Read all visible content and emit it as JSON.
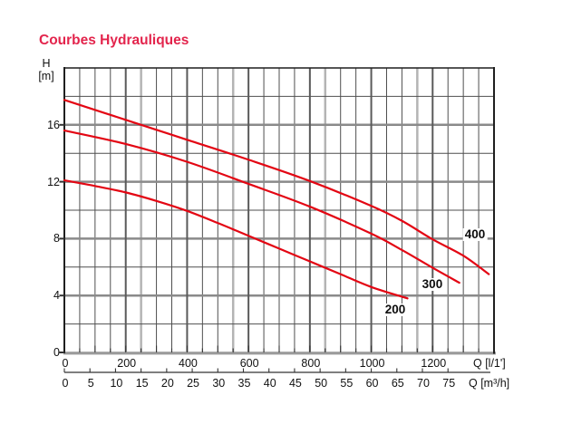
{
  "title": "Courbes Hydrauliques",
  "colors": {
    "title_red": "#e3244c",
    "curve_red": "#e30613",
    "grid_minor": "#4f4f4f",
    "grid_major_h": "#8a8a8a",
    "grid_major_v": "#5a5a5a",
    "grid_moire": "#b4b4b4",
    "axis_dark": "#1f1f1f",
    "bottom_edge": "#9a9a9a",
    "text": "#111111"
  },
  "y_axis": {
    "unit_line1": "H",
    "unit_line2": "[m]",
    "tick_labels": [
      "0",
      "4",
      "8",
      "12",
      "16"
    ],
    "tick_values": [
      0,
      4,
      8,
      12,
      16
    ],
    "max": 20,
    "minor_step": 2
  },
  "x_axis_lmin": {
    "unit_label": "Q [l/1']",
    "tick_labels": [
      "0",
      "200",
      "400",
      "600",
      "800",
      "1000",
      "1200"
    ],
    "tick_values": [
      0,
      200,
      400,
      600,
      800,
      1000,
      1200
    ],
    "max": 1400,
    "minor_step": 50
  },
  "x_axis_m3h": {
    "unit_label": "Q [m³/h]",
    "tick_values": [
      0,
      5,
      10,
      15,
      20,
      25,
      30,
      35,
      40,
      45,
      50,
      55,
      60,
      65,
      70,
      75
    ],
    "lmin_per_unit": 16.6667
  },
  "chart_data": {
    "type": "line",
    "title": "Courbes Hydrauliques",
    "xlabel_primary": "Q [l/1']",
    "xlabel_secondary": "Q [m³/h]",
    "ylabel": "H [m]",
    "xlim": [
      0,
      1400
    ],
    "ylim": [
      0,
      20
    ],
    "grid": "on",
    "legend_position": "inline-curve-labels",
    "series": [
      {
        "name": "200",
        "points": [
          [
            0,
            12.1
          ],
          [
            100,
            11.7
          ],
          [
            200,
            11.25
          ],
          [
            300,
            10.65
          ],
          [
            400,
            9.95
          ],
          [
            500,
            9.1
          ],
          [
            600,
            8.2
          ],
          [
            700,
            7.3
          ],
          [
            800,
            6.4
          ],
          [
            900,
            5.5
          ],
          [
            1000,
            4.6
          ],
          [
            1118,
            3.8
          ]
        ]
      },
      {
        "name": "300",
        "points": [
          [
            0,
            15.6
          ],
          [
            200,
            14.65
          ],
          [
            400,
            13.4
          ],
          [
            600,
            11.85
          ],
          [
            800,
            10.25
          ],
          [
            1000,
            8.35
          ],
          [
            1100,
            7.2
          ],
          [
            1200,
            5.95
          ],
          [
            1287,
            4.9
          ]
        ]
      },
      {
        "name": "400",
        "points": [
          [
            0,
            17.75
          ],
          [
            200,
            16.35
          ],
          [
            400,
            14.95
          ],
          [
            600,
            13.55
          ],
          [
            800,
            12.05
          ],
          [
            1000,
            10.3
          ],
          [
            1100,
            9.25
          ],
          [
            1200,
            7.95
          ],
          [
            1300,
            6.8
          ],
          [
            1383,
            5.5
          ]
        ]
      }
    ],
    "curve_labels": [
      {
        "text": "200",
        "q": 1078,
        "h": 3.0
      },
      {
        "text": "300",
        "q": 1199,
        "h": 4.8
      },
      {
        "text": "400",
        "q": 1338,
        "h": 8.3
      }
    ]
  }
}
